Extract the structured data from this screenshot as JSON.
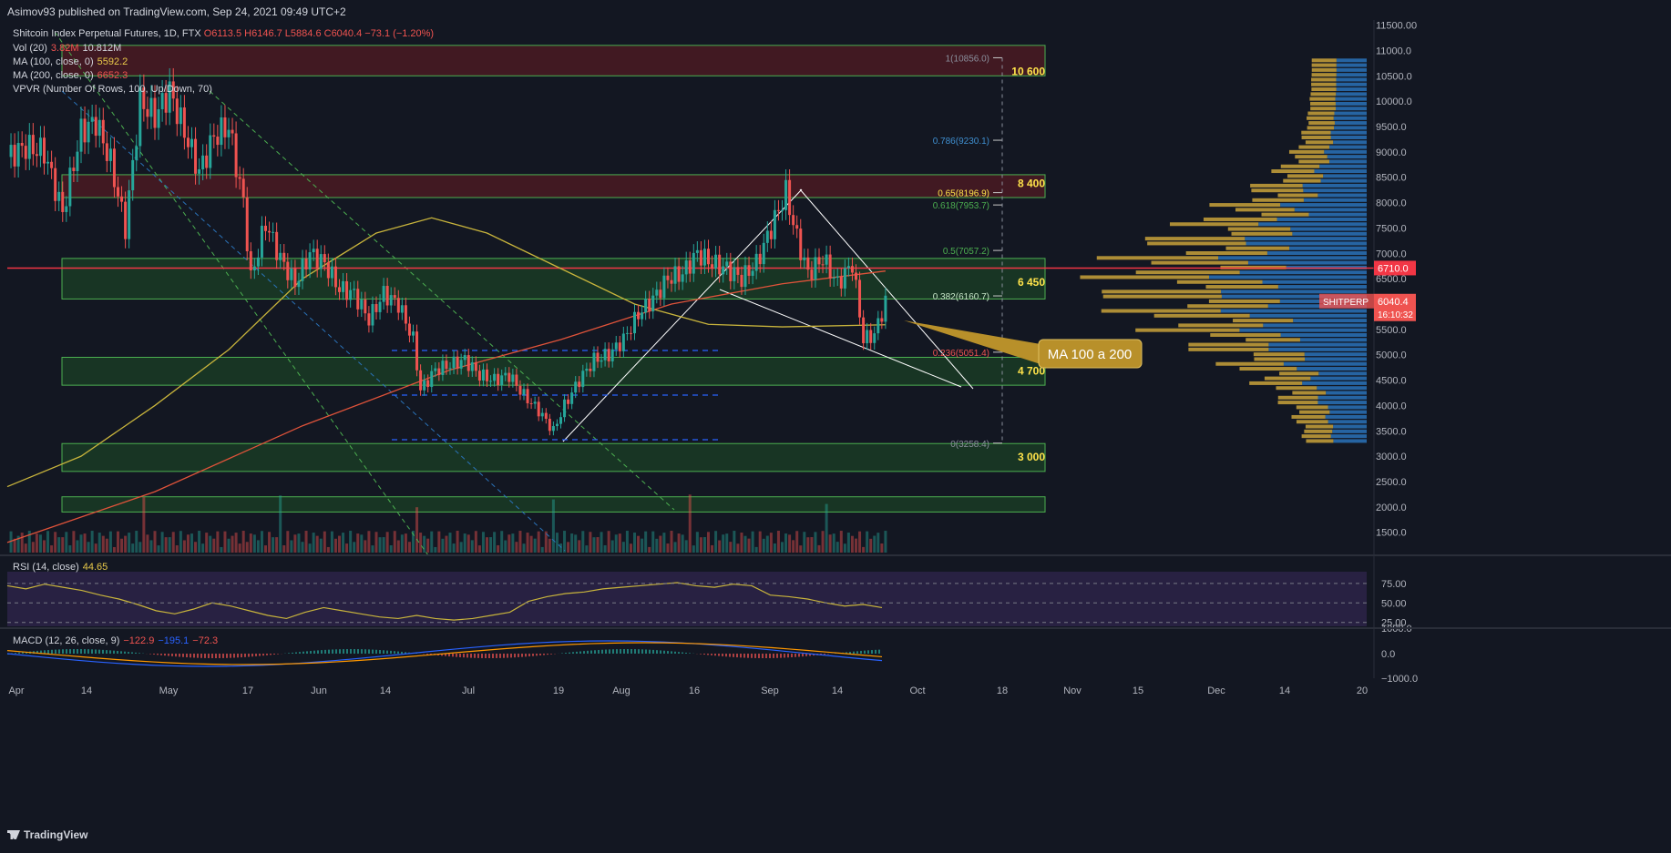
{
  "header": {
    "published": "Asimov93 published on TradingView.com, Sep 24, 2021 09:49 UTC+2"
  },
  "legend": {
    "symbol": "Shitcoin Index Perpetual Futures, 1D, FTX",
    "ohlc": "O6113.5 H6146.7 L5884.6 C6040.4 −73.1 (−1.20%)",
    "vol": "Vol (20)",
    "vol_v1": "3.82M",
    "vol_v2": "10.812M",
    "ma100": "MA (100, close, 0)",
    "ma100_v": "5592.2",
    "ma200": "MA (200, close, 0)",
    "ma200_v": "6652.3",
    "vpvr": "VPVR (Number Of Rows, 100, Up/Down, 70)",
    "rsi": "RSI (14, close)",
    "rsi_v": "44.65",
    "macd": "MACD (12, 26, close, 9)",
    "macd_v1": "−122.9",
    "macd_v2": "−195.1",
    "macd_v3": "−72.3"
  },
  "brand": "TradingView",
  "colors": {
    "bg": "#131722",
    "up": "#26a69a",
    "down": "#ef5350",
    "zone_green": "#1e5a28",
    "zone_red": "#4a1a22",
    "ma100": "#c8b43c",
    "ma200": "#e0533a",
    "vpvr_up": "#2a72b8",
    "vpvr_down": "#c9a23a",
    "fib": "#ffe34a",
    "rsi": "#c8b43c",
    "macd": "#2962ff",
    "signal": "#ff9800"
  },
  "chart_data": {
    "type": "candlestick",
    "y_range": [
      1100,
      11600
    ],
    "x_labels": [
      "Apr",
      "14",
      "May",
      "17",
      "Jun",
      "14",
      "Jul",
      "19",
      "Aug",
      "16",
      "Sep",
      "14",
      "Oct",
      "18",
      "Nov",
      "15",
      "Dec",
      "14",
      "20"
    ],
    "y_ticks": [
      "11500.00",
      "11000.0",
      "10500.0",
      "10000.0",
      "9500.0",
      "9000.0",
      "8500.0",
      "8000.0",
      "7500.0",
      "7000.0",
      "6500.0",
      "6000.0",
      "5500.0",
      "5000.0",
      "4500.0",
      "4000.0",
      "3500.0",
      "3000.0",
      "2500.0",
      "2000.0",
      "1500.0"
    ],
    "price_series": [
      [
        0,
        8900
      ],
      [
        5,
        9100
      ],
      [
        10,
        9000
      ],
      [
        15,
        7800
      ],
      [
        20,
        9400
      ],
      [
        24,
        9600
      ],
      [
        28,
        8800
      ],
      [
        32,
        7500
      ],
      [
        36,
        10000
      ],
      [
        40,
        9700
      ],
      [
        44,
        10200
      ],
      [
        48,
        9400
      ],
      [
        52,
        8600
      ],
      [
        56,
        9300
      ],
      [
        60,
        9500
      ],
      [
        64,
        8000
      ],
      [
        66,
        6500
      ],
      [
        70,
        7600
      ],
      [
        74,
        6900
      ],
      [
        78,
        6400
      ],
      [
        82,
        7000
      ],
      [
        86,
        6800
      ],
      [
        90,
        6300
      ],
      [
        94,
        6200
      ],
      [
        98,
        5700
      ],
      [
        102,
        6200
      ],
      [
        106,
        6000
      ],
      [
        110,
        5300
      ],
      [
        112,
        4300
      ],
      [
        116,
        4700
      ],
      [
        120,
        4800
      ],
      [
        124,
        4900
      ],
      [
        128,
        4600
      ],
      [
        132,
        4500
      ],
      [
        136,
        4600
      ],
      [
        140,
        4200
      ],
      [
        144,
        3900
      ],
      [
        148,
        3500
      ],
      [
        151,
        4000
      ],
      [
        155,
        4500
      ],
      [
        159,
        4900
      ],
      [
        163,
        5000
      ],
      [
        167,
        5300
      ],
      [
        171,
        5800
      ],
      [
        175,
        6100
      ],
      [
        179,
        6500
      ],
      [
        183,
        6600
      ],
      [
        187,
        7000
      ],
      [
        191,
        6800
      ],
      [
        195,
        6700
      ],
      [
        199,
        6500
      ],
      [
        203,
        6800
      ],
      [
        207,
        7500
      ],
      [
        211,
        8200
      ],
      [
        214,
        7300
      ],
      [
        217,
        6600
      ],
      [
        221,
        6900
      ],
      [
        225,
        6400
      ],
      [
        229,
        6800
      ],
      [
        232,
        5300
      ],
      [
        235,
        5400
      ],
      [
        238,
        6040
      ]
    ],
    "ma100": [
      [
        0,
        2400
      ],
      [
        20,
        3000
      ],
      [
        40,
        4000
      ],
      [
        60,
        5100
      ],
      [
        80,
        6500
      ],
      [
        100,
        7400
      ],
      [
        115,
        7700
      ],
      [
        130,
        7400
      ],
      [
        150,
        6700
      ],
      [
        170,
        6000
      ],
      [
        190,
        5600
      ],
      [
        210,
        5550
      ],
      [
        238,
        5592
      ]
    ],
    "ma200": [
      [
        0,
        1300
      ],
      [
        40,
        2300
      ],
      [
        80,
        3600
      ],
      [
        120,
        4700
      ],
      [
        150,
        5300
      ],
      [
        180,
        6000
      ],
      [
        210,
        6400
      ],
      [
        238,
        6652
      ]
    ],
    "zones": [
      {
        "from": 10500,
        "to": 11100,
        "kind": "red"
      },
      {
        "from": 8100,
        "to": 8550,
        "kind": "red"
      },
      {
        "from": 6100,
        "to": 6900,
        "kind": "green"
      },
      {
        "from": 4400,
        "to": 4950,
        "kind": "green"
      },
      {
        "from": 2700,
        "to": 3250,
        "kind": "green"
      },
      {
        "from": 1900,
        "to": 2200,
        "kind": "green"
      }
    ],
    "zone_labels": [
      {
        "text": "10 600",
        "price": 10600
      },
      {
        "text": "8 400",
        "price": 8400
      },
      {
        "text": "6 450",
        "price": 6450
      },
      {
        "text": "4 700",
        "price": 4700
      },
      {
        "text": "3 000",
        "price": 3000
      }
    ],
    "fib_levels": [
      {
        "text": "1(10856.0)",
        "price": 10856,
        "color": "#8a8f9c"
      },
      {
        "text": "0.786(9230.1)",
        "price": 9230,
        "color": "#3f8fd0"
      },
      {
        "text": "0.65(8196.9)",
        "price": 8197,
        "color": "#ffe34a"
      },
      {
        "text": "0.618(7953.7)",
        "price": 7954,
        "color": "#4caf50"
      },
      {
        "text": "0.5(7057.2)",
        "price": 7057,
        "color": "#4caf50"
      },
      {
        "text": "0.382(6160.7)",
        "price": 6161,
        "color": "#c8e6c9"
      },
      {
        "text": "0.236(5051.4)",
        "price": 5051,
        "color": "#ef5350"
      },
      {
        "text": "0(3258.4)",
        "price": 3258,
        "color": "#8a8f9c"
      }
    ],
    "red_line_price": 6710,
    "price_tags": {
      "red_line": "6710.0",
      "symbol": "SHITPERP",
      "last": "6040.4",
      "countdown": "16:10:32"
    },
    "annotation": "MA 100 a 200",
    "rsi": {
      "values": [
        72,
        68,
        74,
        70,
        66,
        60,
        55,
        48,
        40,
        36,
        42,
        50,
        46,
        40,
        34,
        30,
        38,
        44,
        40,
        36,
        32,
        30,
        34,
        30,
        28,
        30,
        34,
        38,
        52,
        58,
        62,
        64,
        68,
        70,
        72,
        74,
        76,
        72,
        70,
        74,
        72,
        60,
        58,
        55,
        50,
        46,
        48,
        44
      ],
      "levels": [
        "75.00",
        "50.00",
        "25.00"
      ]
    },
    "macd": {
      "levels": [
        "1000.0",
        "0.0",
        "−1000.0"
      ]
    }
  }
}
